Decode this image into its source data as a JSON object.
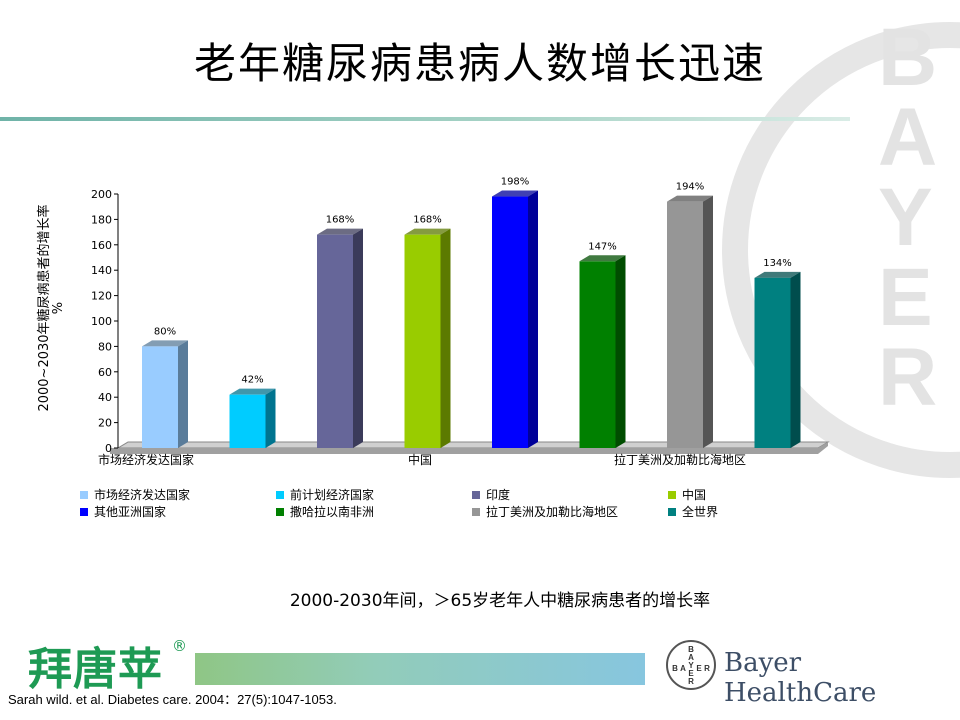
{
  "slide": {
    "title": "老年糖尿病患病人数增长迅速",
    "caption": "2000-2030年间，＞65岁老年人中糖尿病患者的增长率",
    "citation": "Sarah wild. et al. Diabetes care. 2004：27(5):1047-1053."
  },
  "branding": {
    "product_name": "拜唐苹",
    "registered_mark": "®",
    "company": "Bayer HealthCare",
    "watermark_text": "BAYER",
    "cross_top": "BAYER",
    "cross_left": "B",
    "cross_right": "R",
    "cross_bottom": "R",
    "product_color": "#1e9a54"
  },
  "chart_data": {
    "type": "bar",
    "ylabel": "2000~2030年糖尿病患者的增长率\n%",
    "ylim": [
      0,
      200
    ],
    "yticks": [
      0,
      20,
      40,
      60,
      80,
      100,
      120,
      140,
      160,
      180,
      200
    ],
    "grid": false,
    "legend_position": "bottom",
    "group_labels": [
      "市场经济发达国家",
      "中国",
      "拉丁美洲及加勒比海地区"
    ],
    "series": [
      {
        "name": "市场经济发达国家",
        "value": 80,
        "label": "80%",
        "color": "#99ccff",
        "side": "#5a7c9a"
      },
      {
        "name": "前计划经济国家",
        "value": 42,
        "label": "42%",
        "color": "#00ccff",
        "side": "#00748f"
      },
      {
        "name": "印度",
        "value": 168,
        "label": "168%",
        "color": "#666699",
        "side": "#3b3b5a"
      },
      {
        "name": "中国",
        "value": 168,
        "label": "168%",
        "color": "#99cc00",
        "side": "#5c7a00"
      },
      {
        "name": "其他亚洲国家",
        "value": 198,
        "label": "198%",
        "color": "#0000ff",
        "side": "#000099"
      },
      {
        "name": "撒哈拉以南非洲",
        "value": 147,
        "label": "147%",
        "color": "#008000",
        "side": "#004d00"
      },
      {
        "name": "拉丁美洲及加勒比海地区",
        "value": 194,
        "label": "194%",
        "color": "#969696",
        "side": "#555555"
      },
      {
        "name": "全世界",
        "value": 134,
        "label": "134%",
        "color": "#008080",
        "side": "#004d4d"
      }
    ]
  }
}
